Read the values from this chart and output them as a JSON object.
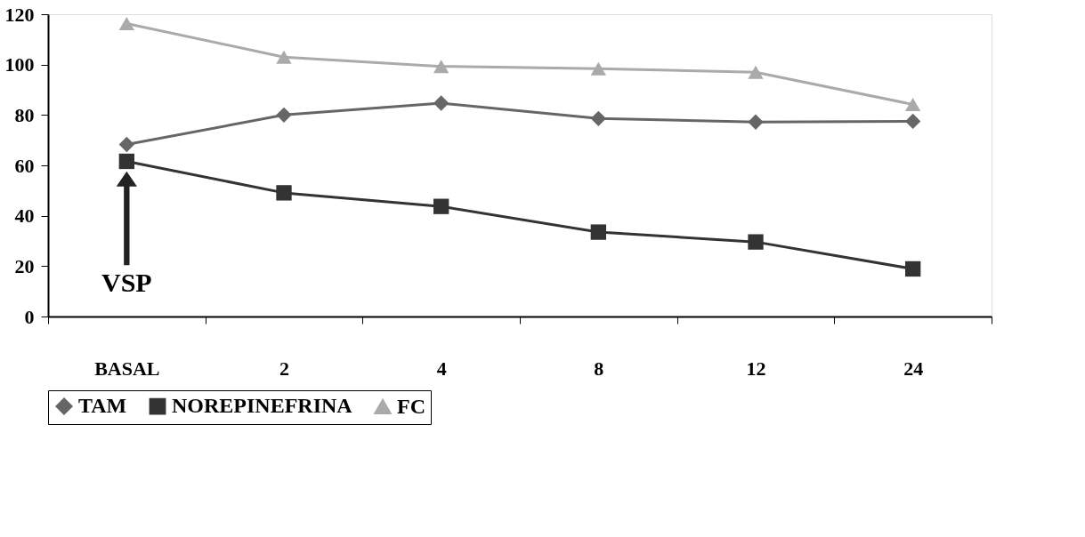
{
  "chart_data": {
    "type": "line",
    "categories": [
      "BASAL",
      "2",
      "4",
      "8",
      "12",
      "24"
    ],
    "series": [
      {
        "name": "TAM",
        "color": "#666666",
        "marker": "diamond",
        "values": [
          68.3,
          80,
          84.7,
          78.6,
          77.2,
          77.5
        ]
      },
      {
        "name": "NOREPINEFRINA",
        "color": "#333333",
        "marker": "square",
        "values": [
          61.6,
          49.1,
          43.7,
          33.5,
          29.6,
          18.9
        ]
      },
      {
        "name": "FC",
        "color": "#aaaaaa",
        "marker": "triangle",
        "values": [
          116.3,
          103,
          99.3,
          98.4,
          97,
          84.2
        ]
      }
    ],
    "ylim": [
      0,
      120
    ],
    "yticks": [
      0,
      20,
      40,
      60,
      80,
      100,
      120
    ],
    "annotations": [
      "VSP"
    ],
    "grid": false,
    "legend": "bottom",
    "line_style": "solid"
  }
}
